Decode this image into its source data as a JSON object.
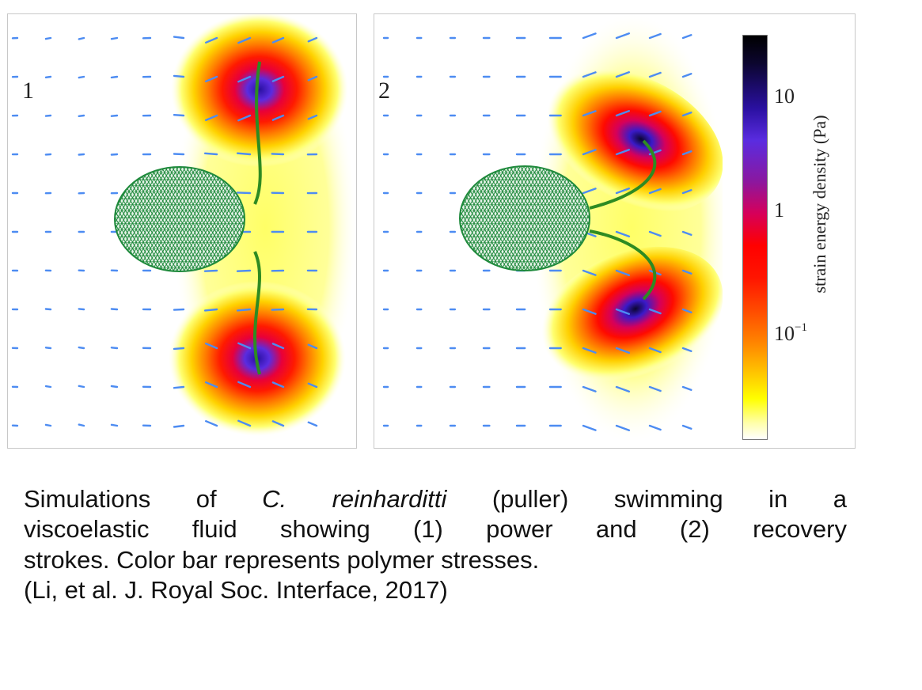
{
  "figure": {
    "panels": [
      {
        "id": "1",
        "label": "1",
        "stroke": "power"
      },
      {
        "id": "2",
        "label": "2",
        "stroke": "recovery"
      }
    ],
    "colorbar": {
      "label": "strain energy density (Pa)",
      "ticks": [
        {
          "base": "10",
          "exp": ""
        },
        {
          "base": "1",
          "exp": ""
        },
        {
          "base": "10",
          "exp": "−1"
        }
      ],
      "scale": "log",
      "colormap": [
        "#000000",
        "#2a10a0",
        "#5a2ce0",
        "#d6005a",
        "#ff0000",
        "#ff8400",
        "#ffff00",
        "#ffffff"
      ]
    },
    "colors": {
      "arrow": "#4d8cf2",
      "body_mesh": "#1f8a3c",
      "flagellum": "#2e8b22"
    }
  },
  "caption": {
    "line1": {
      "pre": "Simulations of ",
      "species": "C. reinharditti",
      "post": " (puller) swimming in a"
    },
    "line2": "viscoelastic fluid showing (1) power and (2) recovery",
    "line3": "strokes. Color bar represents polymer stresses.",
    "line4": "(Li, et al. J. Royal Soc. Interface, 2017)"
  }
}
